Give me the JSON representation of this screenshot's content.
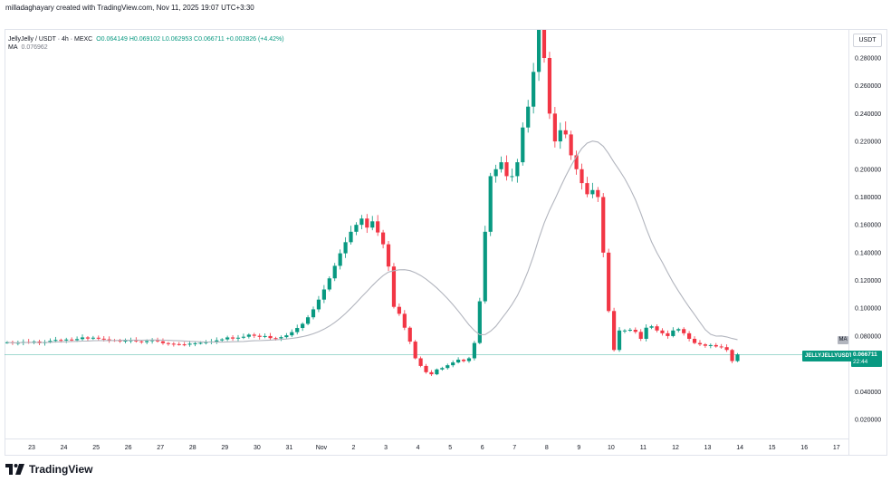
{
  "header": {
    "creator": "milladaghayary created with TradingView.com, Nov 11, 2025 19:07 UTC+3:30",
    "symbol_line": "JellyJelly / USDT · 4h · MEXC",
    "ohlc": "O0.064149 H0.069102 L0.062953 C0.066711 +0.002826 (+4.42%)",
    "ma_label": "MA",
    "ma_value": "0.076962"
  },
  "axis": {
    "currency": "USDT",
    "ma_tag": "MA",
    "price_tag": "JELLYJELLYUSDT",
    "last_price": "0.066711",
    "countdown": "22:44"
  },
  "brand": {
    "name": "TradingView"
  },
  "colors": {
    "up": "#089981",
    "down": "#f23645",
    "ma": "#b2b5be",
    "last_line": "#089981"
  },
  "chart_data": {
    "type": "candlestick",
    "timeframe": "4h",
    "y_ticks": [
      0.02,
      0.04,
      0.06,
      0.08,
      0.1,
      0.12,
      0.14,
      0.16,
      0.18,
      0.2,
      0.22,
      0.24,
      0.26,
      0.28
    ],
    "y_tick_labels": [
      "0.020000",
      "0.040000",
      "0.060000",
      "0.080000",
      "0.100000",
      "0.120000",
      "0.140000",
      "0.160000",
      "0.180000",
      "0.200000",
      "0.220000",
      "0.240000",
      "0.260000",
      "0.280000"
    ],
    "ylim": [
      0.0,
      0.3
    ],
    "x_labels": [
      "23",
      "24",
      "25",
      "26",
      "27",
      "28",
      "29",
      "30",
      "31",
      "Nov",
      "2",
      "3",
      "4",
      "5",
      "6",
      "7",
      "8",
      "9",
      "10",
      "11",
      "12",
      "13",
      "14",
      "15",
      "16",
      "17"
    ],
    "last_price": 0.066711,
    "close": [
      0.0755,
      0.0748,
      0.0752,
      0.0758,
      0.0753,
      0.0761,
      0.0749,
      0.0757,
      0.0765,
      0.0772,
      0.0768,
      0.0775,
      0.077,
      0.0778,
      0.079,
      0.0782,
      0.0788,
      0.0781,
      0.0776,
      0.077,
      0.0768,
      0.0763,
      0.0767,
      0.077,
      0.0762,
      0.0756,
      0.0764,
      0.077,
      0.0762,
      0.0749,
      0.0745,
      0.0742,
      0.074,
      0.0738,
      0.0745,
      0.0748,
      0.0751,
      0.0756,
      0.0761,
      0.0769,
      0.0776,
      0.079,
      0.0782,
      0.0788,
      0.0795,
      0.081,
      0.0802,
      0.0794,
      0.08,
      0.0785,
      0.0783,
      0.0792,
      0.0805,
      0.0828,
      0.0858,
      0.0888,
      0.0935,
      0.0992,
      0.1062,
      0.1135,
      0.1215,
      0.1305,
      0.1395,
      0.1475,
      0.155,
      0.16,
      0.1645,
      0.158,
      0.1625,
      0.1545,
      0.146,
      0.13,
      0.101,
      0.096,
      0.086,
      0.076,
      0.064,
      0.0585,
      0.054,
      0.0525,
      0.056,
      0.057,
      0.059,
      0.061,
      0.063,
      0.062,
      0.064,
      0.075,
      0.105,
      0.155,
      0.195,
      0.2,
      0.205,
      0.195,
      0.195,
      0.205,
      0.23,
      0.245,
      0.27,
      0.305,
      0.28,
      0.24,
      0.22,
      0.228,
      0.225,
      0.21,
      0.2,
      0.19,
      0.182,
      0.185,
      0.18,
      0.14,
      0.098,
      0.07,
      0.084,
      0.084,
      0.0845,
      0.083,
      0.078,
      0.086,
      0.087,
      0.084,
      0.082,
      0.08,
      0.084,
      0.085,
      0.082,
      0.078,
      0.075,
      0.074,
      0.073,
      0.0735,
      0.0725,
      0.072,
      0.07,
      0.062,
      0.0667
    ]
  }
}
